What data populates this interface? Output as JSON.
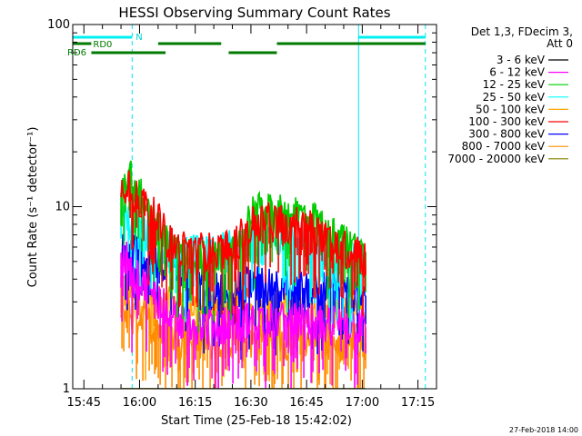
{
  "chart_data": {
    "type": "line",
    "title": "HESSI Observing Summary Count Rates",
    "xlabel": "Start Time (25-Feb-18 15:42:02)",
    "ylabel": "Count Rate (s⁻¹ detector⁻¹)",
    "y_scale": "log",
    "ylim": [
      1,
      100
    ],
    "xlim": [
      "15:42",
      "17:20"
    ],
    "x_ticks": [
      "15:45",
      "16:00",
      "16:15",
      "16:30",
      "16:45",
      "17:00",
      "17:15"
    ],
    "y_ticks": [
      "1",
      "10",
      "100"
    ],
    "grid": false,
    "legend_position": "right",
    "legend_header": [
      "Det 1,3, FDecim 3,",
      "Att 0"
    ],
    "footer_date": "27-Feb-2018 14:00",
    "flag_labels": {
      "n": "N",
      "rd0": "RD0",
      "rd6": "RD6"
    },
    "markers": {
      "night_bars": [
        [
          "15:42",
          "15:58"
        ],
        [
          "16:59",
          "17:17"
        ]
      ],
      "rd0_bars": [
        [
          "15:42",
          "15:47"
        ],
        [
          "16:05",
          "16:22"
        ],
        [
          "16:37",
          "17:17"
        ]
      ],
      "rd6_bars": [
        [
          "15:47",
          "16:07"
        ],
        [
          "16:24",
          "16:37"
        ]
      ],
      "vlines_solid": [
        "15:42",
        "16:59"
      ],
      "vlines_dashed": [
        "15:58",
        "17:17"
      ]
    },
    "series": [
      {
        "name": "3 - 6 keV",
        "color": "#000000",
        "points": [
          [
            "15:55",
            1.0
          ],
          [
            "15:57",
            1.0
          ],
          [
            "16:00",
            1.0
          ],
          [
            "16:30",
            1.0
          ],
          [
            "17:01",
            1.0
          ]
        ]
      },
      {
        "name": "6 - 12 keV",
        "color": "#ff00ff",
        "points": [
          [
            "15:55",
            5.0
          ],
          [
            "15:57",
            5.2
          ],
          [
            "15:58",
            4.3
          ],
          [
            "16:00",
            4.0
          ],
          [
            "16:05",
            3.2
          ],
          [
            "16:10",
            2.5
          ],
          [
            "16:20",
            2.2
          ],
          [
            "16:30",
            2.4
          ],
          [
            "16:40",
            2.4
          ],
          [
            "16:50",
            2.3
          ],
          [
            "17:00",
            2.3
          ],
          [
            "17:01",
            2.2
          ]
        ]
      },
      {
        "name": "12 - 25 keV",
        "color": "#00cc00",
        "points": [
          [
            "15:55",
            13.0
          ],
          [
            "15:57",
            16.0
          ],
          [
            "15:58",
            14.0
          ],
          [
            "16:00",
            12.0
          ],
          [
            "16:03",
            9.0
          ],
          [
            "16:06",
            7.0
          ],
          [
            "16:10",
            5.5
          ],
          [
            "16:20",
            5.2
          ],
          [
            "16:27",
            6.0
          ],
          [
            "16:30",
            9.5
          ],
          [
            "16:35",
            9.8
          ],
          [
            "16:40",
            9.0
          ],
          [
            "16:45",
            9.2
          ],
          [
            "16:50",
            7.5
          ],
          [
            "16:55",
            6.5
          ],
          [
            "17:00",
            5.8
          ],
          [
            "17:01",
            5.5
          ]
        ]
      },
      {
        "name": "25 - 50 keV",
        "color": "#00ffff",
        "points": [
          [
            "15:55",
            9.0
          ],
          [
            "15:58",
            8.0
          ],
          [
            "16:00",
            7.5
          ],
          [
            "16:05",
            6.5
          ],
          [
            "16:10",
            5.8
          ],
          [
            "16:20",
            5.5
          ],
          [
            "16:30",
            6.8
          ],
          [
            "16:40",
            6.8
          ],
          [
            "16:50",
            6.0
          ],
          [
            "17:00",
            5.0
          ],
          [
            "17:01",
            4.8
          ]
        ]
      },
      {
        "name": "50 - 100 keV",
        "color": "#ffa500",
        "points": [
          [
            "15:55",
            3.8
          ],
          [
            "15:58",
            3.5
          ],
          [
            "16:00",
            3.0
          ],
          [
            "16:10",
            2.9
          ],
          [
            "16:20",
            2.8
          ],
          [
            "16:30",
            2.9
          ],
          [
            "16:40",
            2.8
          ],
          [
            "16:50",
            2.9
          ],
          [
            "17:00",
            2.8
          ],
          [
            "17:01",
            2.0
          ]
        ]
      },
      {
        "name": "100 - 300 keV",
        "color": "#ff0000",
        "points": [
          [
            "15:55",
            12.0
          ],
          [
            "15:57",
            15.0
          ],
          [
            "15:58",
            12.5
          ],
          [
            "16:00",
            11.0
          ],
          [
            "16:02",
            10.0
          ],
          [
            "16:05",
            8.5
          ],
          [
            "16:08",
            6.5
          ],
          [
            "16:10",
            6.0
          ],
          [
            "16:20",
            5.8
          ],
          [
            "16:25",
            6.2
          ],
          [
            "16:30",
            8.0
          ],
          [
            "16:35",
            8.5
          ],
          [
            "16:40",
            8.2
          ],
          [
            "16:45",
            8.0
          ],
          [
            "16:50",
            7.0
          ],
          [
            "16:55",
            6.0
          ],
          [
            "17:00",
            5.5
          ],
          [
            "17:01",
            5.2
          ]
        ]
      },
      {
        "name": "300 - 800 keV",
        "color": "#0000ff",
        "points": [
          [
            "15:55",
            6.0
          ],
          [
            "15:58",
            5.8
          ],
          [
            "16:00",
            5.5
          ],
          [
            "16:10",
            5.0
          ],
          [
            "16:20",
            3.5
          ],
          [
            "16:30",
            3.8
          ],
          [
            "16:40",
            3.6
          ],
          [
            "16:50",
            3.6
          ],
          [
            "17:00",
            3.3
          ],
          [
            "17:01",
            3.2
          ]
        ]
      },
      {
        "name": "800 - 7000 keV",
        "color": "#ff8c00",
        "points": [
          [
            "15:55",
            2.8
          ],
          [
            "15:58",
            2.6
          ],
          [
            "16:00",
            2.5
          ],
          [
            "16:10",
            1.9
          ],
          [
            "16:20",
            1.9
          ],
          [
            "16:30",
            1.9
          ],
          [
            "16:40",
            1.9
          ],
          [
            "16:50",
            1.9
          ],
          [
            "17:00",
            1.9
          ],
          [
            "17:01",
            1.9
          ]
        ]
      },
      {
        "name": "7000 - 20000 keV",
        "color": "#808000",
        "points": [
          [
            "15:55",
            1.0
          ],
          [
            "16:00",
            1.0
          ],
          [
            "16:30",
            1.0
          ],
          [
            "17:01",
            1.0
          ]
        ]
      }
    ]
  }
}
